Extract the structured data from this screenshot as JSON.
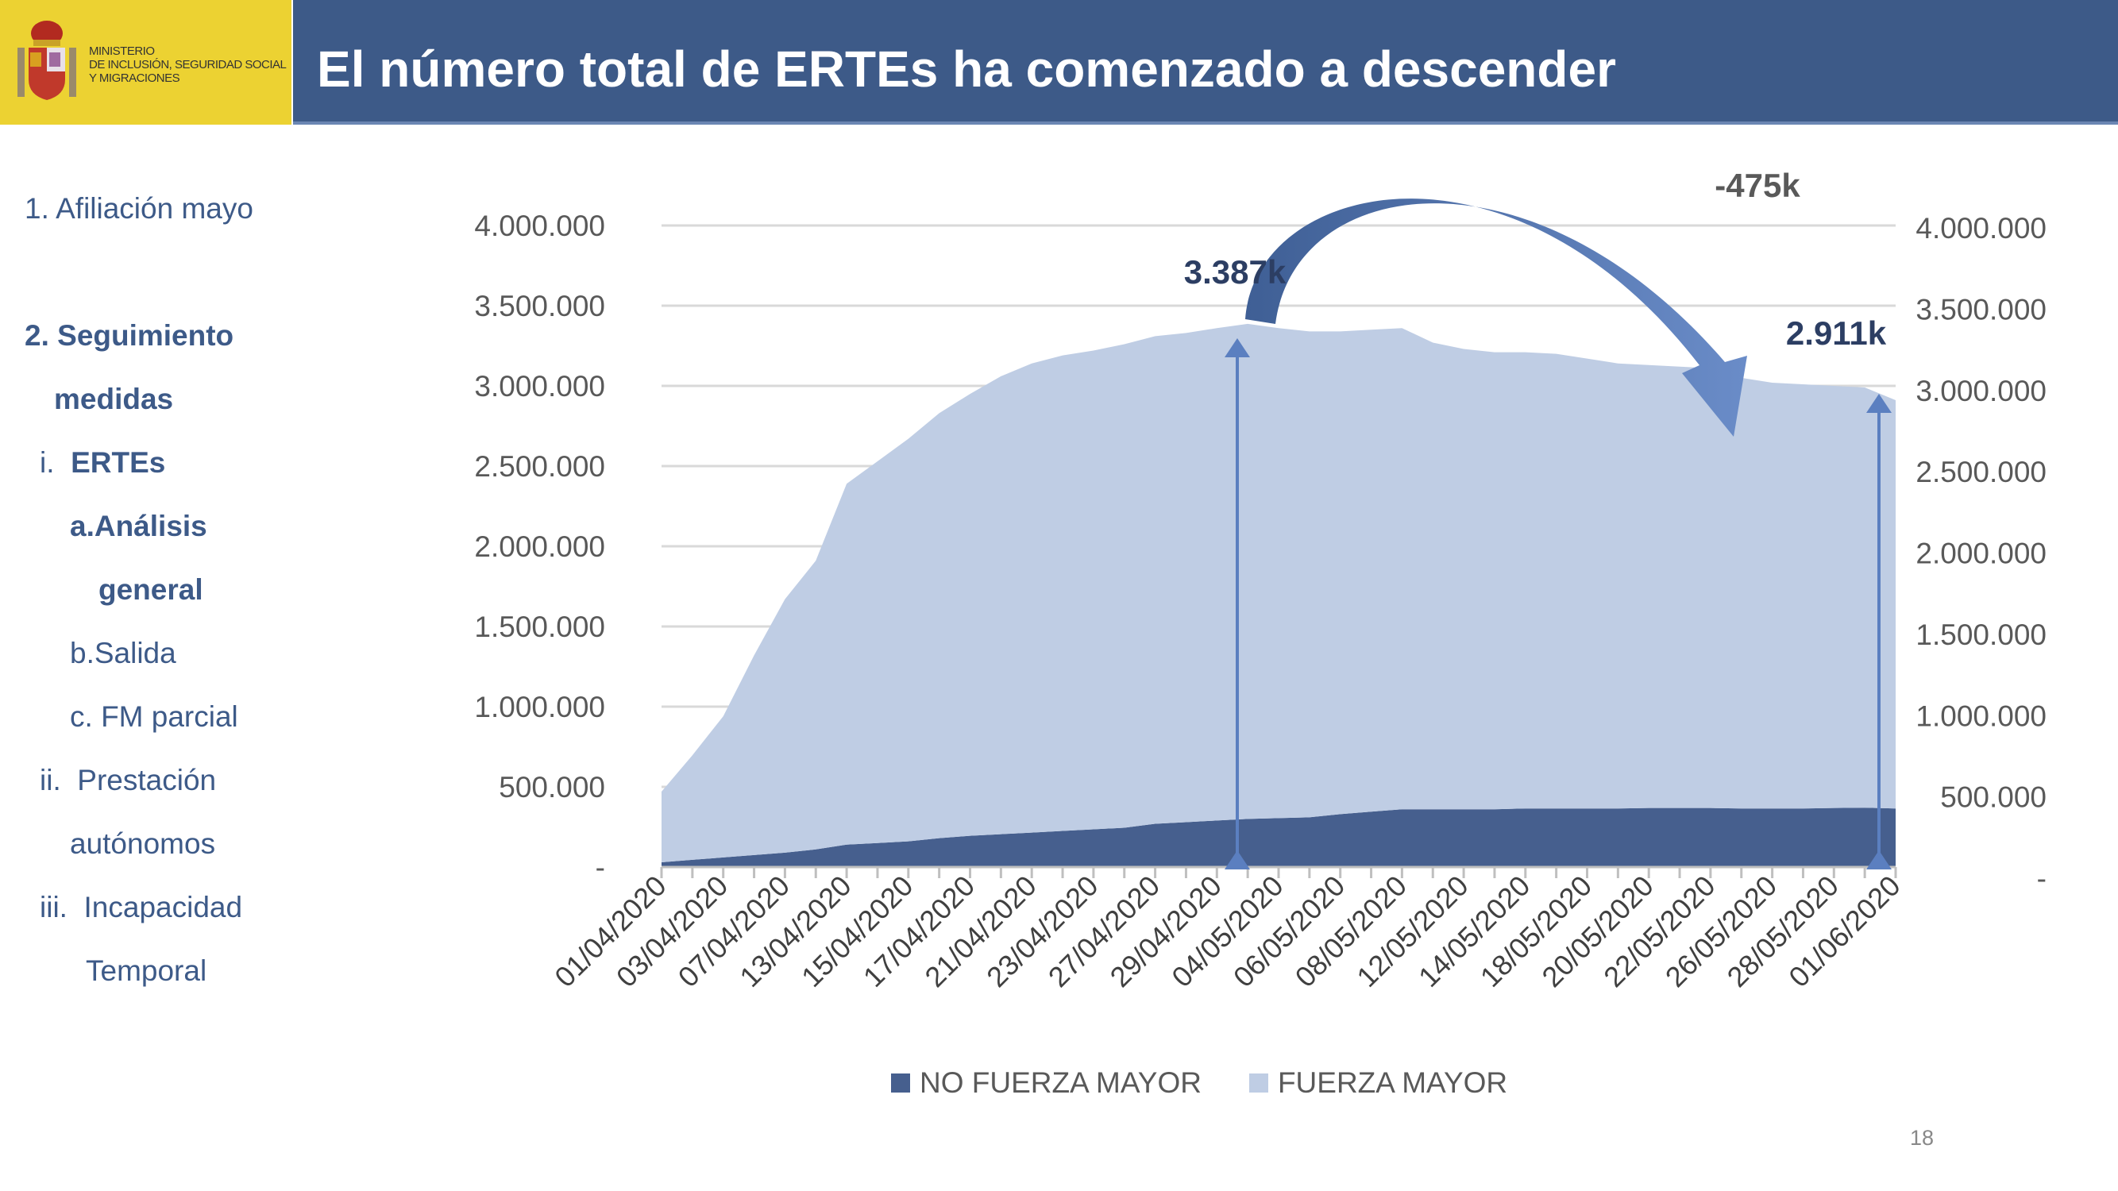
{
  "header": {
    "ministry_lines": [
      "MINISTERIO",
      "DE INCLUSIÓN, SEGURIDAD SOCIAL",
      "Y MIGRACIONES"
    ],
    "title": "El número total de ERTEs ha comenzado a descender"
  },
  "sidebar": {
    "items": [
      {
        "num": "1.",
        "label": "Afiliación mayo"
      },
      {
        "num": "2.",
        "label": "Seguimiento"
      },
      {
        "label": "medidas"
      },
      {
        "num": "i.",
        "label": "ERTEs"
      },
      {
        "num": "a.",
        "label": "Análisis"
      },
      {
        "label": "general"
      },
      {
        "num": "b.",
        "label": "Salida"
      },
      {
        "num": "c.",
        "label": "FM parcial"
      },
      {
        "num": "ii.",
        "label": "Prestación"
      },
      {
        "label": "autónomos"
      },
      {
        "num": "iii.",
        "label": "Incapacidad"
      },
      {
        "label": "Temporal"
      }
    ]
  },
  "chart_data": {
    "type": "area",
    "stacked": true,
    "title": "",
    "xlabel": "",
    "ylabel": "",
    "ylim": [
      0,
      4000000
    ],
    "yticks_left": [
      "-",
      "500.000",
      "1.000.000",
      "1.500.000",
      "2.000.000",
      "2.500.000",
      "3.000.000",
      "3.500.000",
      "4.000.000"
    ],
    "yticks_right": [
      "-",
      "500.000",
      "1.000.000",
      "1.500.000",
      "2.000.000",
      "2.500.000",
      "3.000.000",
      "3.500.000",
      "4.000.000"
    ],
    "x_tick_labels": [
      "01/04/2020",
      "03/04/2020",
      "07/04/2020",
      "13/04/2020",
      "15/04/2020",
      "17/04/2020",
      "21/04/2020",
      "23/04/2020",
      "27/04/2020",
      "29/04/2020",
      "04/05/2020",
      "06/05/2020",
      "08/05/2020",
      "12/05/2020",
      "14/05/2020",
      "18/05/2020",
      "20/05/2020",
      "22/05/2020",
      "26/05/2020",
      "28/05/2020",
      "01/06/2020"
    ],
    "x_label_every": 2,
    "grid": true,
    "legend_position": "bottom",
    "series": [
      {
        "name": "NO FUERZA MAYOR",
        "color": "#465f8e",
        "values": [
          30000,
          45000,
          60000,
          75000,
          90000,
          110000,
          140000,
          150000,
          160000,
          180000,
          195000,
          205000,
          215000,
          225000,
          235000,
          245000,
          270000,
          280000,
          290000,
          300000,
          305000,
          310000,
          330000,
          345000,
          360000,
          360000,
          360000,
          360000,
          365000,
          365000,
          365000,
          365000,
          368000,
          368000,
          368000,
          365000,
          365000,
          365000,
          368000,
          370000,
          365000
        ]
      },
      {
        "name": "FUERZA MAYOR",
        "color": "#bfcde4",
        "values": [
          440000,
          652000,
          880000,
          1245000,
          1580000,
          1800000,
          2250000,
          2380000,
          2510000,
          2650000,
          2755000,
          2855000,
          2925000,
          2965000,
          2985000,
          3015000,
          3040000,
          3050000,
          3070000,
          3087000,
          3055000,
          3030000,
          3010000,
          3005000,
          3000000,
          2910000,
          2870000,
          2850000,
          2845000,
          2835000,
          2805000,
          2775000,
          2762000,
          2752000,
          2742000,
          2685000,
          2655000,
          2645000,
          2632000,
          2620000,
          2546000
        ]
      }
    ],
    "annotations": {
      "peak_label": "3.387k",
      "end_label": "2.911k",
      "change_label": "-475k",
      "peak_index": 19,
      "end_index": 40
    }
  },
  "page_number": "18"
}
